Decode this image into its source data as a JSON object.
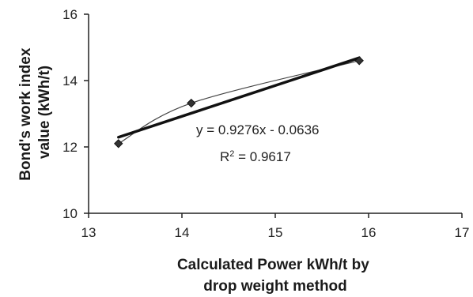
{
  "chart_data": {
    "type": "scatter",
    "title": "",
    "xlabel": [
      "Calculated Power kWh/t by",
      "drop weight method"
    ],
    "ylabel": [
      "Bond's work index",
      "value (kWh/t)"
    ],
    "xlim": [
      13,
      17
    ],
    "ylim": [
      10,
      16
    ],
    "x_ticks": [
      "13",
      "14",
      "15",
      "16",
      "17"
    ],
    "y_ticks": [
      "10",
      "12",
      "14",
      "16"
    ],
    "grid": false,
    "legend": "none",
    "series": [
      {
        "marker": "diamond",
        "color": "#333333",
        "x": [
          13.32,
          14.1,
          15.9
        ],
        "y": [
          12.1,
          13.32,
          14.6
        ],
        "connector": "smoothed"
      }
    ],
    "trendline": {
      "type": "linear",
      "slope": 0.9276,
      "intercept": -0.0636,
      "x_range": [
        13.32,
        15.9
      ],
      "color": "#111111",
      "equation": "y = 0.9276x  - 0.0636",
      "r2_prefix": "R",
      "r2_sup": "2",
      "r2_value": " = 0.9617"
    }
  }
}
